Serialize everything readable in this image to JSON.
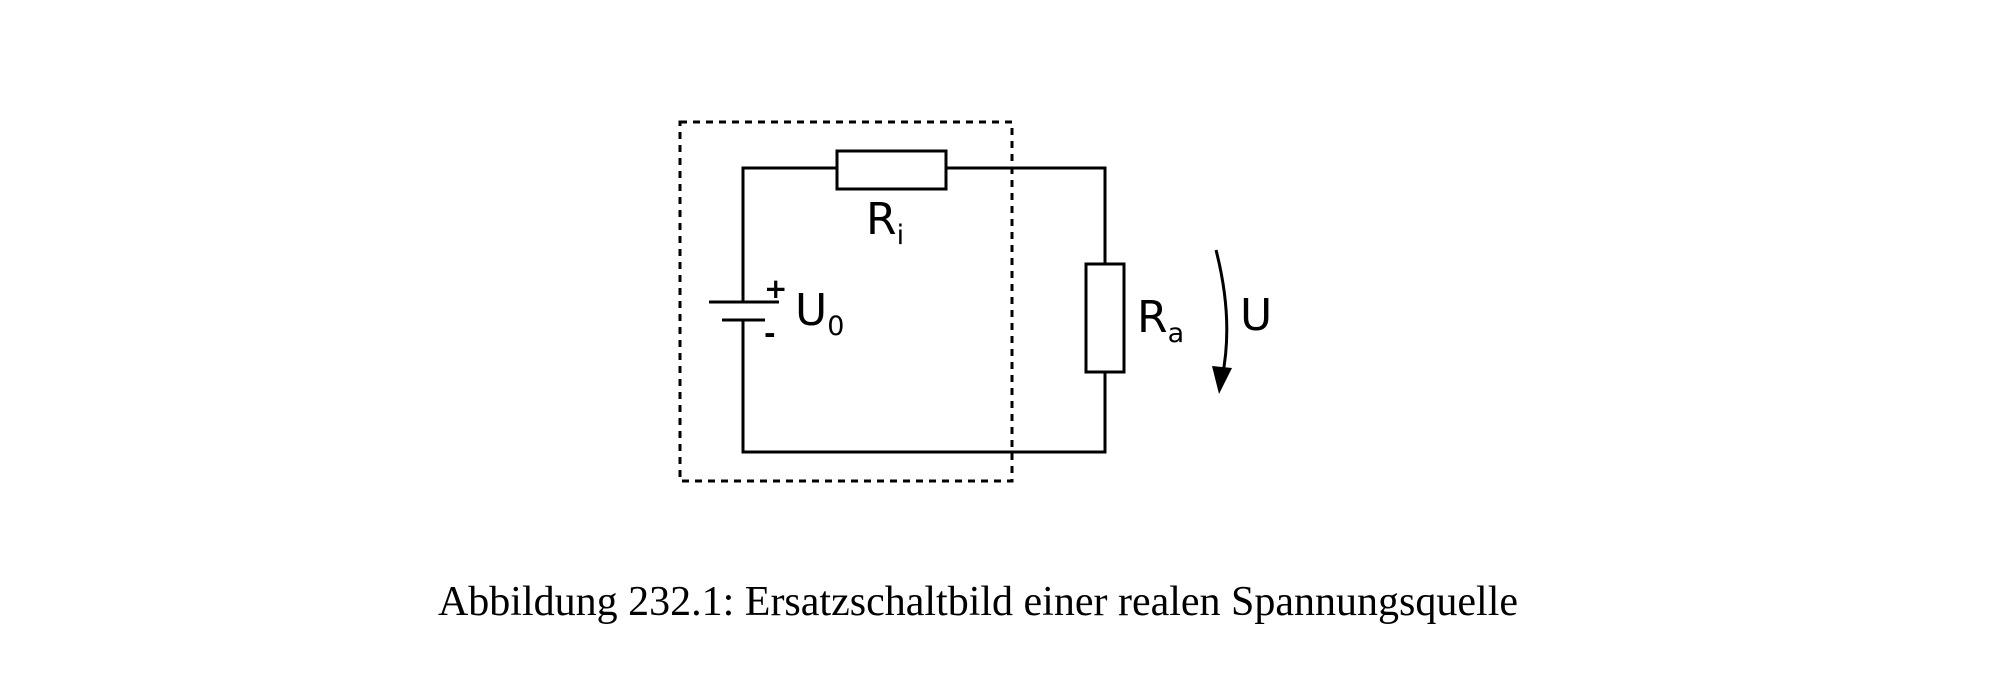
{
  "figure": {
    "caption": "Abbildung 232.1: Ersatzschaltbild einer realen Spannungsquelle"
  },
  "circuit": {
    "internal_resistor": {
      "symbol": "R",
      "subscript": "i"
    },
    "load_resistor": {
      "symbol": "R",
      "subscript": "a"
    },
    "source": {
      "symbol": "U",
      "subscript": "0",
      "plus": "+",
      "minus": "-"
    },
    "voltage_arrow": {
      "label": "U"
    }
  }
}
